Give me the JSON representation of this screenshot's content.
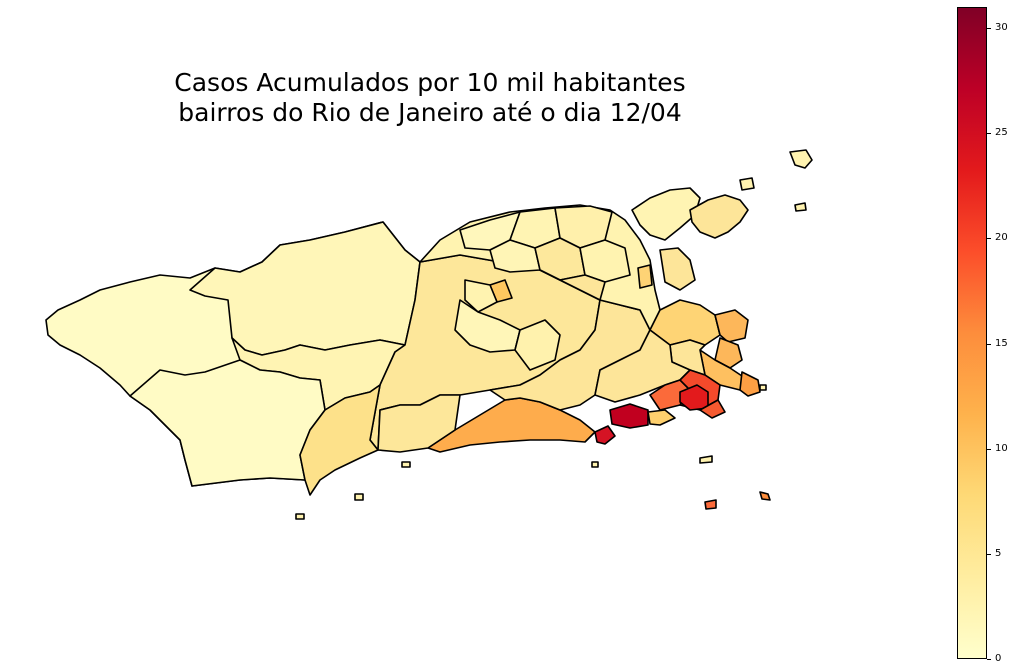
{
  "title": {
    "line1": "Casos Acumulados por 10 mil habitantes",
    "line2": "bairros do Rio de Janeiro até o dia 12/04"
  },
  "colorbar": {
    "colormap": "YlOrRd",
    "min": 0,
    "max": 31,
    "ticks": [
      "0",
      "5",
      "10",
      "15",
      "20",
      "25",
      "30"
    ],
    "colors": [
      "#ffffcc",
      "#ffeda0",
      "#fed976",
      "#feb24c",
      "#fd8d3c",
      "#fc4e2a",
      "#e31a1c",
      "#bd0026",
      "#800026"
    ]
  },
  "map": {
    "region": "Rio de Janeiro",
    "border_color": "#000000"
  }
}
